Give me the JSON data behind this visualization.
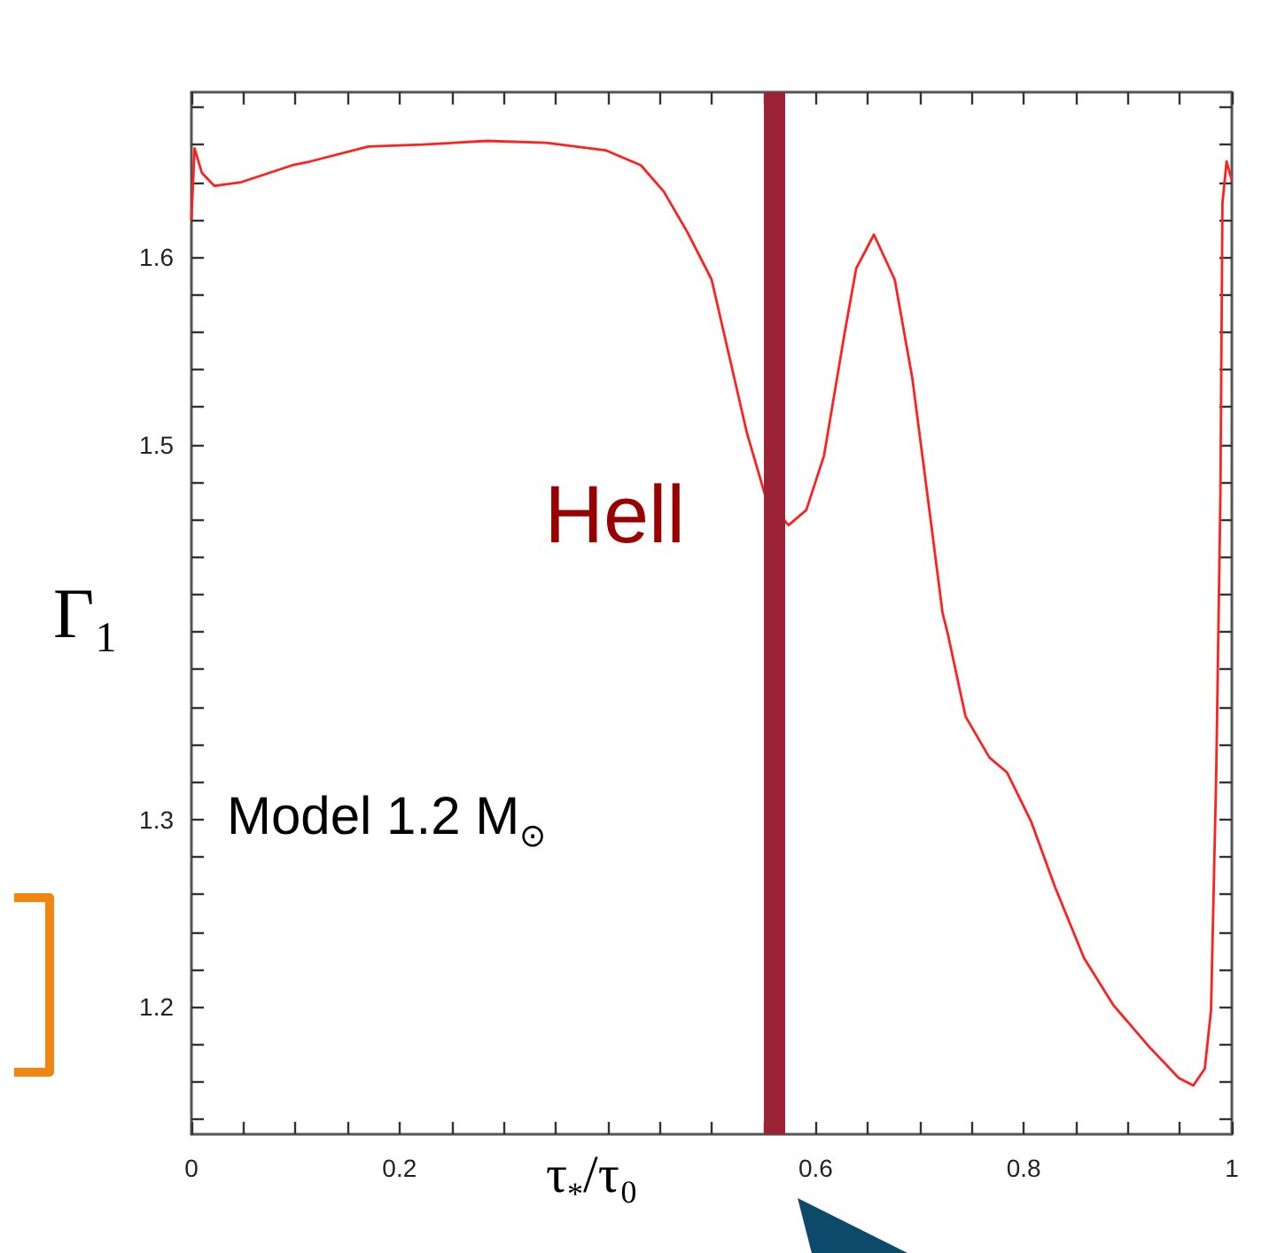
{
  "chart_data": {
    "type": "line",
    "xlabel": "τ$_{*}$/τ₀",
    "ylabel": "Γ₁",
    "annotations": [
      "Model 1.2 M$_{⊙}$"
    ],
    "x": [
      0,
      0.003,
      0.01,
      0.022,
      0.048,
      0.097,
      0.114,
      0.17,
      0.222,
      0.284,
      0.341,
      0.398,
      0.432,
      0.454,
      0.477,
      0.5,
      0.517,
      0.534,
      0.553,
      0.574,
      0.591,
      0.608,
      0.628,
      0.639,
      0.656,
      0.676,
      0.693,
      0.71,
      0.722,
      0.727,
      0.744,
      0.767,
      0.784,
      0.807,
      0.83,
      0.858,
      0.886,
      0.92,
      0.949,
      0.963,
      0.974,
      0.98,
      0.985,
      0.989,
      0.991,
      0.995,
      1.0
    ],
    "series": [
      {
        "color": "#ff2020",
        "values": [
          1.62,
          1.658,
          1.645,
          1.638,
          1.64,
          1.649,
          1.651,
          1.659,
          1.66,
          1.662,
          1.661,
          1.657,
          1.649,
          1.635,
          1.613,
          1.588,
          1.547,
          1.506,
          1.47,
          1.457,
          1.465,
          1.494,
          1.56,
          1.594,
          1.612,
          1.588,
          1.535,
          1.462,
          1.41,
          1.399,
          1.355,
          1.333,
          1.325,
          1.299,
          1.264,
          1.226,
          1.201,
          1.179,
          1.162,
          1.158,
          1.167,
          1.198,
          1.324,
          1.472,
          1.629,
          1.651,
          1.641
        ]
      }
    ],
    "xlim": [
      0,
      1
    ],
    "xticks": [
      0,
      {
        "value": 0.05,
        "label": null
      },
      {
        "value": 0.1,
        "label": null
      },
      {
        "value": 0.15,
        "label": null
      },
      0.2,
      {
        "value": 0.25,
        "label": null
      },
      {
        "value": 0.3,
        "label": null
      },
      {
        "value": 0.35,
        "label": null
      },
      {
        "value": 0.4,
        "label": null
      },
      {
        "value": 0.45,
        "label": null
      },
      {
        "value": 0.5,
        "label": null
      },
      {
        "value": 0.55,
        "label": null
      },
      0.6,
      {
        "value": 0.65,
        "label": null
      },
      {
        "value": 0.7,
        "label": null
      },
      {
        "value": 0.75,
        "label": null
      },
      0.8,
      {
        "value": 0.85,
        "label": null
      },
      {
        "value": 0.9,
        "label": null
      },
      {
        "value": 0.95,
        "label": null
      },
      1
    ],
    "ylim": [
      1.132,
      1.688
    ],
    "yticks": [
      {
        "value": 1.14,
        "label": null
      },
      {
        "value": 1.16,
        "label": null
      },
      {
        "value": 1.18,
        "label": null
      },
      1.2,
      {
        "value": 1.22,
        "label": null
      },
      {
        "value": 1.24,
        "label": null
      },
      {
        "value": 1.26,
        "label": null
      },
      {
        "value": 1.28,
        "label": null
      },
      1.3,
      {
        "value": 1.32,
        "label": null
      },
      {
        "value": 1.34,
        "label": null
      },
      {
        "value": 1.36,
        "label": null
      },
      {
        "value": 1.38,
        "label": null
      },
      {
        "value": 1.4,
        "label": null
      },
      {
        "value": 1.42,
        "label": null
      },
      {
        "value": 1.44,
        "label": null
      },
      {
        "value": 1.46,
        "label": null
      },
      {
        "value": 1.48,
        "label": null
      },
      1.5,
      {
        "value": 1.52,
        "label": null
      },
      {
        "value": 1.54,
        "label": null
      },
      {
        "value": 1.56,
        "label": null
      },
      {
        "value": 1.58,
        "label": null
      },
      1.6,
      {
        "value": 1.62,
        "label": null
      },
      {
        "value": 1.64,
        "label": null
      },
      {
        "value": 1.66,
        "label": null
      },
      {
        "value": 1.68,
        "label": null
      }
    ],
    "ref_lines": [
      {
        "axis": "x",
        "value": 0.563,
        "label": "Hell",
        "color": "#9b2335"
      }
    ],
    "marker": "none",
    "line_style": "solid"
  }
}
